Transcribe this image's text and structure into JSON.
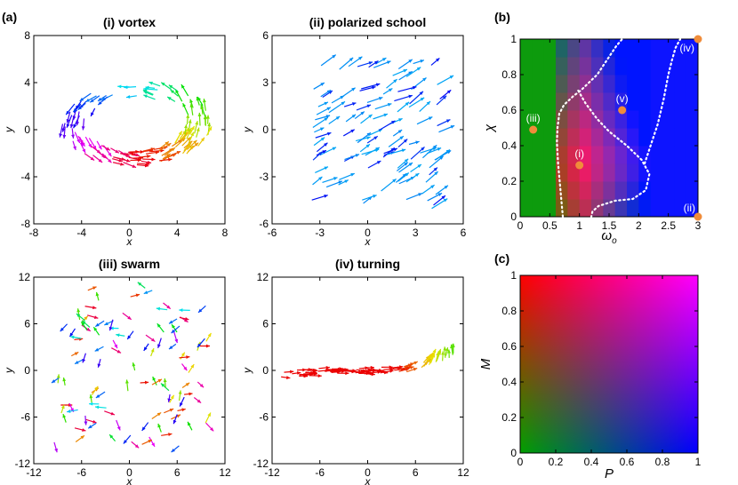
{
  "figure": {
    "group_a_label": "(a)",
    "group_b_label": "(b)",
    "group_c_label": "(c)"
  },
  "chart_data": [
    {
      "id": "vortex",
      "type": "scatter",
      "title": "(i) vortex",
      "xlabel": "x",
      "ylabel": "y",
      "xlim": [
        -8,
        8
      ],
      "ylim": [
        -8,
        8
      ],
      "xticks": [
        "-8",
        "-4",
        "0",
        "4",
        "8"
      ],
      "yticks": [
        "-8",
        "-4",
        "0",
        "4",
        "8"
      ],
      "description": "arrows circulating counter-clockwise around a ring; colour encodes heading"
    },
    {
      "id": "polarized",
      "type": "scatter",
      "title": "(ii) polarized school",
      "xlabel": "x",
      "ylabel": "y",
      "xlim": [
        -6,
        6
      ],
      "ylim": [
        -6,
        6
      ],
      "xticks": [
        "-6",
        "-3",
        "0",
        "3",
        "6"
      ],
      "yticks": [
        "-6",
        "-3",
        "0",
        "3",
        "6"
      ]
    },
    {
      "id": "swarm",
      "type": "scatter",
      "title": "(iii) swarm",
      "xlabel": "x",
      "ylabel": "y",
      "xlim": [
        -12,
        12
      ],
      "ylim": [
        -12,
        12
      ],
      "xticks": [
        "-12",
        "-6",
        "0",
        "6",
        "12"
      ],
      "yticks": [
        "-12",
        "-6",
        "0",
        "6",
        "12"
      ]
    },
    {
      "id": "turning",
      "type": "scatter",
      "title": "(iv) turning",
      "xlabel": "x",
      "ylabel": "y",
      "xlim": [
        -12,
        12
      ],
      "ylim": [
        -12,
        12
      ],
      "xticks": [
        "-12",
        "-6",
        "0",
        "6",
        "12"
      ],
      "yticks": [
        "-12",
        "-6",
        "0",
        "6",
        "12"
      ]
    },
    {
      "id": "phase",
      "type": "heatmap",
      "xlabel": "ω",
      "xlabel_sub": "o",
      "ylabel": "χ",
      "xlim": [
        0,
        3
      ],
      "ylim": [
        0,
        1
      ],
      "xticks": [
        "0",
        "0.5",
        "1",
        "1.5",
        "2",
        "2.5",
        "3"
      ],
      "yticks": [
        "0",
        "0.2",
        "0.4",
        "0.6",
        "0.8",
        "1"
      ],
      "points": [
        {
          "label": "(i)",
          "x": 1.0,
          "y": 0.29
        },
        {
          "label": "(ii)",
          "x": 3.0,
          "y": 0.0
        },
        {
          "label": "(iii)",
          "x": 0.22,
          "y": 0.49
        },
        {
          "label": "(iv)",
          "x": 3.0,
          "y": 1.0
        },
        {
          "label": "(v)",
          "x": 1.72,
          "y": 0.6
        }
      ],
      "point_color": "#f08c3a",
      "boundaries": [
        {
          "name": "swarm-boundary",
          "x": [
            0.72,
            0.68,
            0.64,
            0.62,
            0.63,
            0.66,
            0.74,
            0.9,
            1.02,
            1.3,
            1.5,
            1.62,
            1.72
          ],
          "y": [
            0.0,
            0.15,
            0.3,
            0.42,
            0.5,
            0.58,
            0.63,
            0.68,
            0.71,
            0.8,
            0.9,
            0.96,
            1.0
          ]
        },
        {
          "name": "vortex-boundary",
          "x": [
            0.98,
            1.1,
            1.3,
            1.5,
            1.8,
            2.05,
            2.18,
            2.12,
            1.9,
            1.6,
            1.32,
            1.22,
            1.2
          ],
          "y": [
            0.71,
            0.64,
            0.55,
            0.48,
            0.4,
            0.32,
            0.24,
            0.15,
            0.1,
            0.09,
            0.06,
            0.03,
            0.0
          ]
        },
        {
          "name": "turning-boundary",
          "x": [
            2.1,
            2.2,
            2.32,
            2.42,
            2.5,
            2.56,
            2.62,
            2.7
          ],
          "y": [
            0.3,
            0.4,
            0.52,
            0.66,
            0.8,
            0.88,
            0.95,
            1.0
          ]
        }
      ]
    },
    {
      "id": "colormap",
      "type": "heatmap",
      "xlabel": "P",
      "ylabel": "M",
      "xlim": [
        0,
        1
      ],
      "ylim": [
        0,
        1
      ],
      "xticks": [
        "0",
        "0.2",
        "0.4",
        "0.6",
        "0.8",
        "1"
      ],
      "yticks": [
        "0",
        "0.2",
        "0.4",
        "0.6",
        "0.8",
        "1"
      ],
      "corner_colors": {
        "P0_M0": "#00a000",
        "P1_M0": "#0000ff",
        "P0_M1": "#ff0000",
        "P1_M1": "#ff00ff"
      }
    }
  ]
}
